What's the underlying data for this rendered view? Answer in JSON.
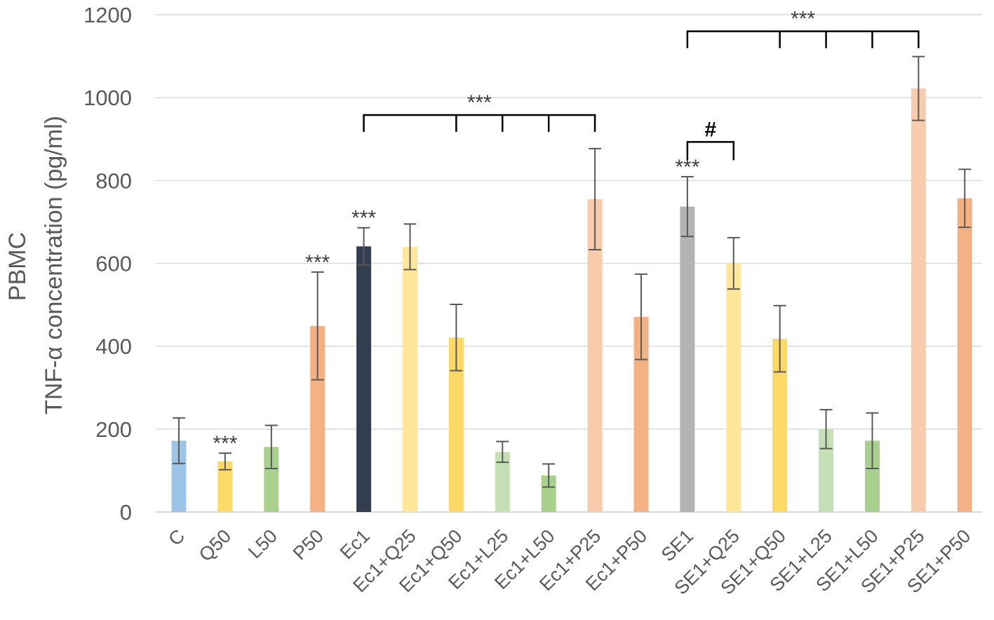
{
  "chart_data": {
    "type": "bar",
    "title": "",
    "ylabel_lines": [
      "PBMC",
      "TNF-α concentration (pg/ml)"
    ],
    "xlabel": "",
    "ylim": [
      0,
      1200
    ],
    "yticks": [
      0,
      200,
      400,
      600,
      800,
      1000,
      1200
    ],
    "grid": true,
    "categories": [
      "C",
      "Q50",
      "L50",
      "P50",
      "Ec1",
      "Ec1+Q25",
      "Ec1+Q50",
      "Ec1+L25",
      "Ec1+L50",
      "Ec1+P25",
      "Ec1+P50",
      "SE1",
      "SE1+Q25",
      "SE1+Q50",
      "SE1+L25",
      "SE1+L50",
      "SE1+P25",
      "SE1+P50"
    ],
    "values": [
      172,
      122,
      157,
      449,
      641,
      640,
      421,
      145,
      88,
      755,
      471,
      737,
      600,
      418,
      200,
      172,
      1022,
      757
    ],
    "errors": [
      55,
      20,
      52,
      130,
      45,
      55,
      80,
      25,
      28,
      122,
      103,
      72,
      62,
      80,
      47,
      67,
      77,
      70
    ],
    "colors": [
      "#9dc3e6",
      "#ffd966",
      "#a9d18e",
      "#f4b183",
      "#333f50",
      "#ffe699",
      "#ffd966",
      "#c5e0b4",
      "#a9d18e",
      "#f8cbad",
      "#f4b183",
      "#b4b4b4",
      "#ffe699",
      "#ffd966",
      "#c5e0b4",
      "#a9d18e",
      "#f8cbad",
      "#f4b183"
    ],
    "annotations": {
      "bar_marks": [
        {
          "index": 1,
          "text": "***"
        },
        {
          "index": 3,
          "text": "***"
        },
        {
          "index": 4,
          "text": "***"
        },
        {
          "index": 11,
          "text": "***"
        }
      ],
      "brackets": [
        {
          "from": 4,
          "ticks": [
            6,
            7,
            8
          ],
          "to": 9,
          "value": 958,
          "text": "***"
        },
        {
          "from": 11,
          "ticks": [],
          "to": 12,
          "value": 893,
          "text": "#"
        },
        {
          "from": 11,
          "ticks": [
            13,
            14,
            15
          ],
          "to": 16,
          "value": 1160,
          "text": "***"
        }
      ]
    }
  }
}
